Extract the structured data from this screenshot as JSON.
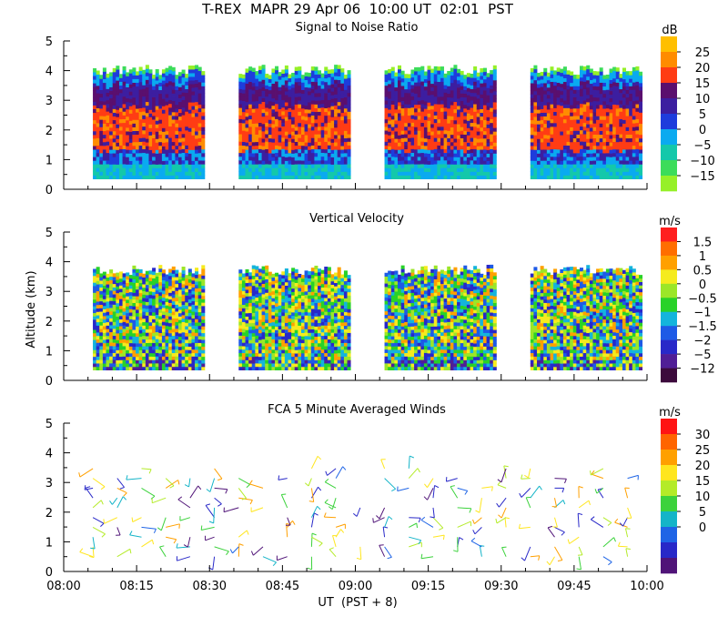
{
  "header": {
    "line1": "T-REX  MAPR 29 Apr 06  10:00 UT  02:01  PST",
    "ylabel": "Altitude (km)",
    "xlabel": "UT  (PST + 8)"
  },
  "chart_data": [
    {
      "type": "heatmap",
      "title": "Signal to Noise Ratio",
      "units": "dB",
      "xlabel": "UT  (PST + 8)",
      "ylabel": "Altitude (km)",
      "x_ticks": [
        "08:00",
        "08:15",
        "08:30",
        "08:45",
        "09:00",
        "09:15",
        "09:30",
        "09:45",
        "10:00"
      ],
      "y_ticks": [
        "0",
        "1",
        "2",
        "3",
        "4",
        "5"
      ],
      "ylim": [
        0,
        5
      ],
      "data_segments_ut": [
        [
          "08:06",
          "08:29"
        ],
        [
          "08:36",
          "08:59"
        ],
        [
          "09:06",
          "09:29"
        ],
        [
          "09:36",
          "09:59"
        ]
      ],
      "data_altitude_range_km": [
        0.35,
        4.1
      ],
      "colorbar": {
        "labels": [
          "25",
          "20",
          "15",
          "10",
          "5",
          "0",
          "−5",
          "−10",
          "−15"
        ],
        "colors": [
          "#ffbf00",
          "#ff8c00",
          "#ff3c14",
          "#5a0f6e",
          "#3c1ea0",
          "#1e3cdc",
          "#0aaaf0",
          "#14c8aa",
          "#3cdc5a",
          "#96f028"
        ]
      }
    },
    {
      "type": "heatmap",
      "title": "Vertical Velocity",
      "units": "m/s",
      "xlabel": "UT  (PST + 8)",
      "ylabel": "Altitude (km)",
      "x_ticks": [
        "08:00",
        "08:15",
        "08:30",
        "08:45",
        "09:00",
        "09:15",
        "09:30",
        "09:45",
        "10:00"
      ],
      "y_ticks": [
        "0",
        "1",
        "2",
        "3",
        "4",
        "5"
      ],
      "ylim": [
        0,
        5
      ],
      "data_segments_ut": [
        [
          "08:06",
          "08:29"
        ],
        [
          "08:36",
          "08:59"
        ],
        [
          "09:06",
          "09:29"
        ],
        [
          "09:36",
          "09:59"
        ]
      ],
      "data_altitude_range_km": [
        0.35,
        3.8
      ],
      "colorbar": {
        "labels": [
          "1.5",
          "1",
          "0.5",
          "0",
          "−0.5",
          "−1",
          "−1.5",
          "−2",
          "−5",
          "−12"
        ],
        "colors": [
          "#ff1e1e",
          "#ff6e00",
          "#ffa000",
          "#f5eb1e",
          "#9be628",
          "#28d228",
          "#14b4dc",
          "#1e5ae6",
          "#2828c8",
          "#501e96",
          "#3c0a3c"
        ]
      }
    },
    {
      "type": "scatter",
      "title": "FCA 5 Minute Averaged Winds",
      "units": "m/s",
      "xlabel": "UT  (PST + 8)",
      "ylabel": "Altitude (km)",
      "x_ticks": [
        "08:00",
        "08:15",
        "08:30",
        "08:45",
        "09:00",
        "09:15",
        "09:30",
        "09:45",
        "10:00"
      ],
      "y_ticks": [
        "0",
        "1",
        "2",
        "3",
        "4",
        "5"
      ],
      "ylim": [
        0,
        5
      ],
      "glyph": "wind barbs",
      "colorbar": {
        "labels": [
          "30",
          "25",
          "20",
          "15",
          "10",
          "5",
          "0"
        ],
        "colors": [
          "#ff1414",
          "#ff6400",
          "#ffa000",
          "#ffe61e",
          "#b4eb28",
          "#3cd23c",
          "#14b4c8",
          "#1e64e6",
          "#2828c8",
          "#501478"
        ]
      }
    }
  ]
}
